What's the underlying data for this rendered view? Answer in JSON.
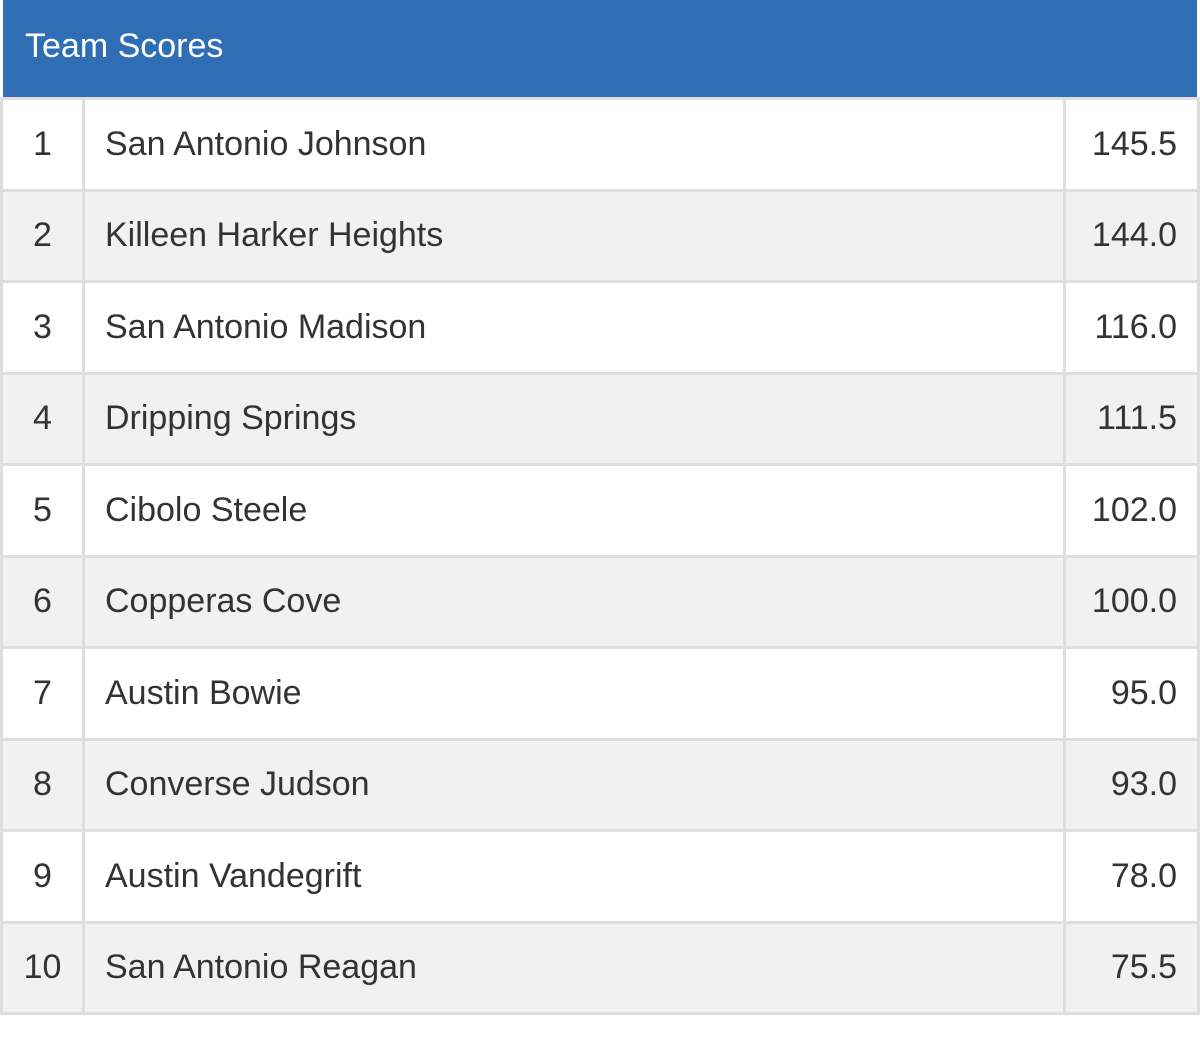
{
  "header": {
    "title": "Team Scores"
  },
  "colors": {
    "header_bg": "#2f6db5",
    "row_alt_bg": "#f1f1f1",
    "border": "#dedede"
  },
  "rows": [
    {
      "rank": "1",
      "team": "San Antonio Johnson",
      "score": "145.5"
    },
    {
      "rank": "2",
      "team": "Killeen Harker Heights",
      "score": "144.0"
    },
    {
      "rank": "3",
      "team": "San Antonio Madison",
      "score": "116.0"
    },
    {
      "rank": "4",
      "team": "Dripping Springs",
      "score": "111.5"
    },
    {
      "rank": "5",
      "team": "Cibolo Steele",
      "score": "102.0"
    },
    {
      "rank": "6",
      "team": "Copperas Cove",
      "score": "100.0"
    },
    {
      "rank": "7",
      "team": "Austin Bowie",
      "score": "95.0"
    },
    {
      "rank": "8",
      "team": "Converse Judson",
      "score": "93.0"
    },
    {
      "rank": "9",
      "team": "Austin Vandegrift",
      "score": "78.0"
    },
    {
      "rank": "10",
      "team": "San Antonio Reagan",
      "score": "75.5"
    }
  ]
}
